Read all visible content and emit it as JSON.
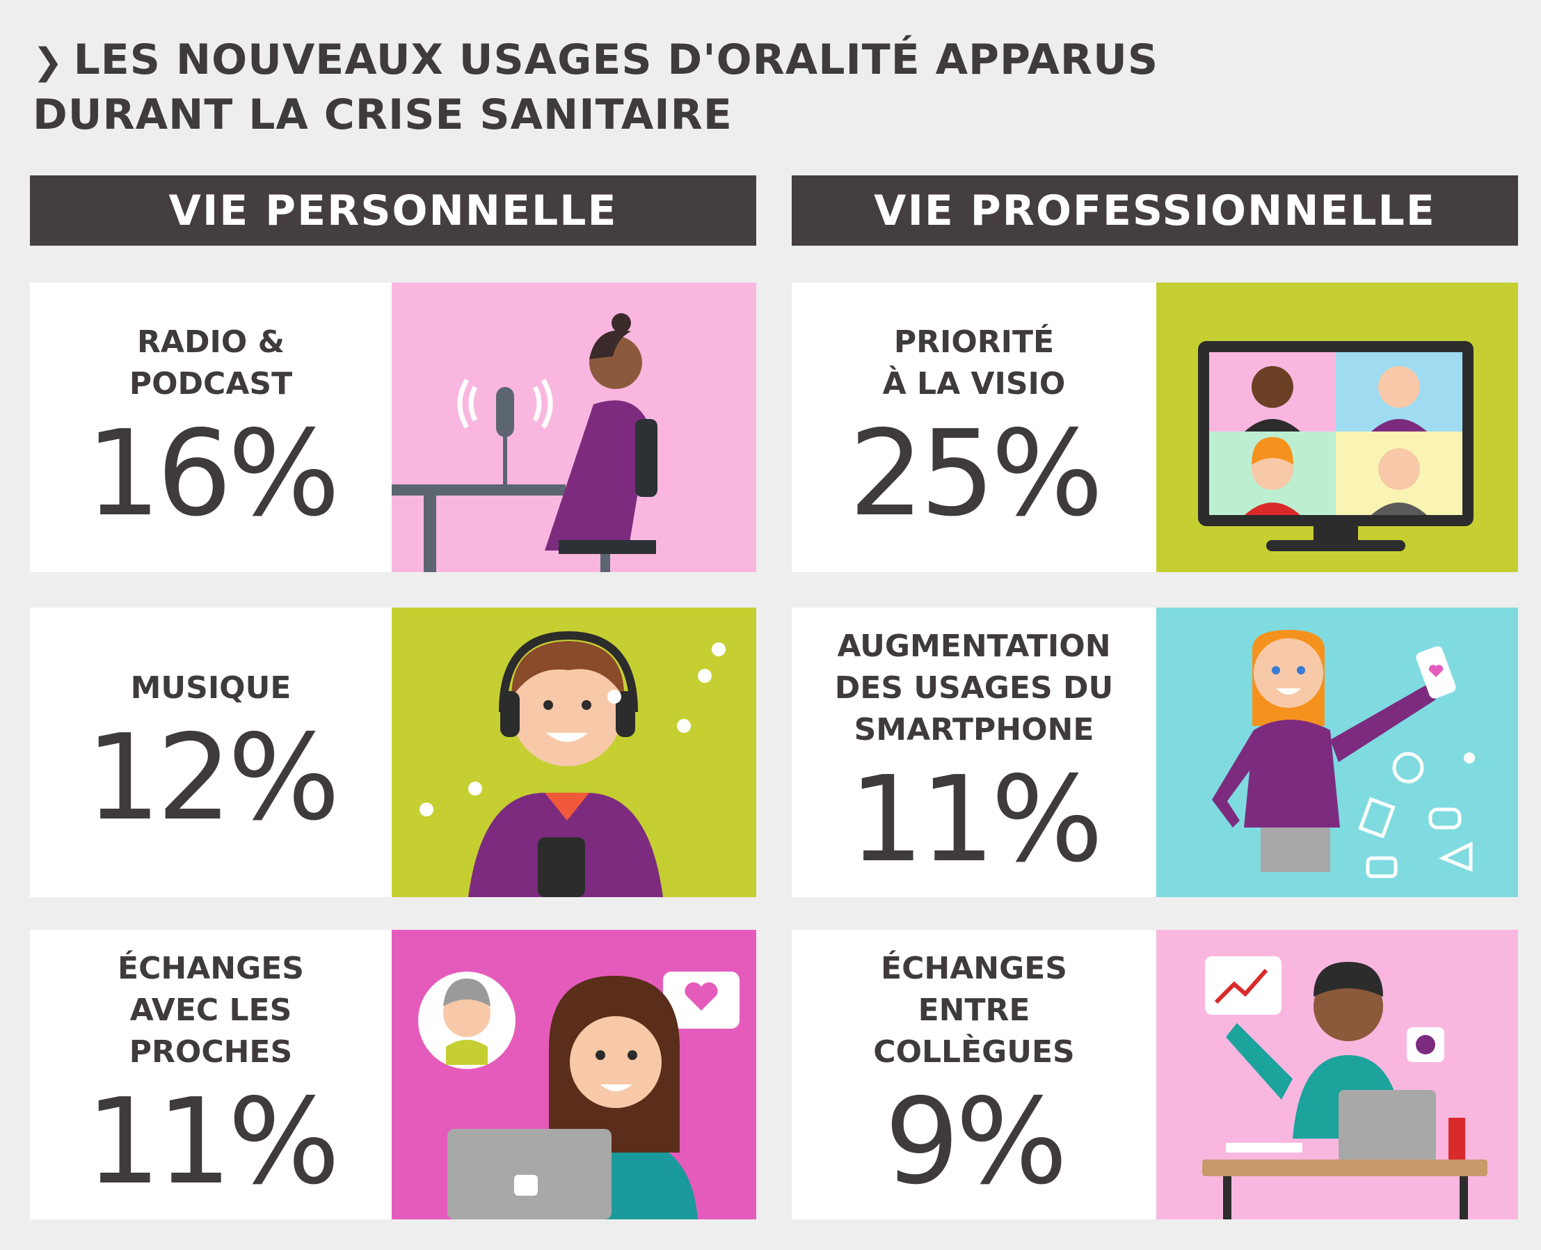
{
  "title": {
    "chevron": "❯",
    "line1": "LES NOUVEAUX USAGES D'ORALITÉ APPARUS",
    "line2": "DURANT LA CRISE SANITAIRE"
  },
  "columns": {
    "personal": "VIE PERSONNELLE",
    "professional": "VIE PROFESSIONNELLE"
  },
  "personal": [
    {
      "label_lines": [
        "RADIO &",
        "PODCAST"
      ],
      "value": "16%",
      "illustration": "woman-podcast-microphone",
      "bg": "#f9b7e0"
    },
    {
      "label_lines": [
        "MUSIQUE"
      ],
      "value": "12%",
      "illustration": "man-headphones-music",
      "bg": "#c5cf32"
    },
    {
      "label_lines": [
        "ÉCHANGES",
        "AVEC LES",
        "PROCHES"
      ],
      "value": "11%",
      "illustration": "woman-laptop-video-call",
      "bg": "#e55bbb"
    }
  ],
  "professional": [
    {
      "label_lines": [
        "PRIORITÉ",
        "À LA VISIO"
      ],
      "value": "25%",
      "illustration": "tv-video-conference",
      "bg": "#c5cf32"
    },
    {
      "label_lines": [
        "AUGMENTATION",
        "DES USAGES DU",
        "SMARTPHONE"
      ],
      "value": "11%",
      "illustration": "woman-smartphone-apps",
      "bg": "#7fdbe0"
    },
    {
      "label_lines": [
        "ÉCHANGES",
        "ENTRE",
        "COLLÈGUES"
      ],
      "value": "9%",
      "illustration": "man-desk-laptop-headset",
      "bg": "#f9b7e0"
    }
  ]
}
